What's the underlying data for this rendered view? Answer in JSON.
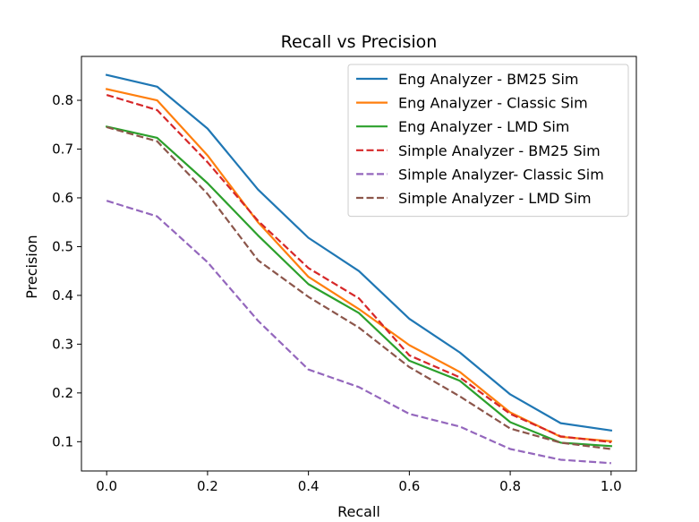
{
  "chart_data": {
    "type": "line",
    "title": "Recall vs Precision",
    "xlabel": "Recall",
    "ylabel": "Precision",
    "xlim": [
      -0.05,
      1.05
    ],
    "ylim": [
      0.04,
      0.89
    ],
    "x": [
      0.0,
      0.1,
      0.2,
      0.3,
      0.4,
      0.5,
      0.6,
      0.7,
      0.8,
      0.9,
      1.0
    ],
    "xticks": [
      "0.0",
      "0.2",
      "0.4",
      "0.6",
      "0.8",
      "1.0"
    ],
    "yticks": [
      "0.1",
      "0.2",
      "0.3",
      "0.4",
      "0.5",
      "0.6",
      "0.7",
      "0.8"
    ],
    "grid": false,
    "legend_position": "top-right",
    "series": [
      {
        "name": "Eng Analyzer - BM25 Sim",
        "color": "#1f77b4",
        "dashed": false,
        "values": [
          0.852,
          0.828,
          0.742,
          0.617,
          0.518,
          0.45,
          0.352,
          0.283,
          0.197,
          0.138,
          0.123
        ]
      },
      {
        "name": "Eng Analyzer - Classic Sim",
        "color": "#ff7f0e",
        "dashed": false,
        "values": [
          0.823,
          0.8,
          0.687,
          0.55,
          0.438,
          0.372,
          0.298,
          0.243,
          0.16,
          0.11,
          0.101
        ]
      },
      {
        "name": "Eng Analyzer - LMD Sim",
        "color": "#2ca02c",
        "dashed": false,
        "values": [
          0.746,
          0.723,
          0.63,
          0.523,
          0.423,
          0.364,
          0.266,
          0.225,
          0.14,
          0.098,
          0.091
        ]
      },
      {
        "name": "Simple Analyzer - BM25 Sim",
        "color": "#d62728",
        "dashed": true,
        "values": [
          0.811,
          0.78,
          0.673,
          0.553,
          0.456,
          0.394,
          0.277,
          0.232,
          0.157,
          0.111,
          0.099
        ]
      },
      {
        "name": "Simple Analyzer- Classic Sim",
        "color": "#9467bd",
        "dashed": true,
        "values": [
          0.594,
          0.562,
          0.468,
          0.348,
          0.248,
          0.212,
          0.157,
          0.131,
          0.085,
          0.063,
          0.056
        ]
      },
      {
        "name": "Simple Analyzer - LMD Sim",
        "color": "#8c564b",
        "dashed": true,
        "values": [
          0.745,
          0.716,
          0.608,
          0.472,
          0.397,
          0.334,
          0.253,
          0.193,
          0.127,
          0.098,
          0.085
        ]
      }
    ]
  }
}
